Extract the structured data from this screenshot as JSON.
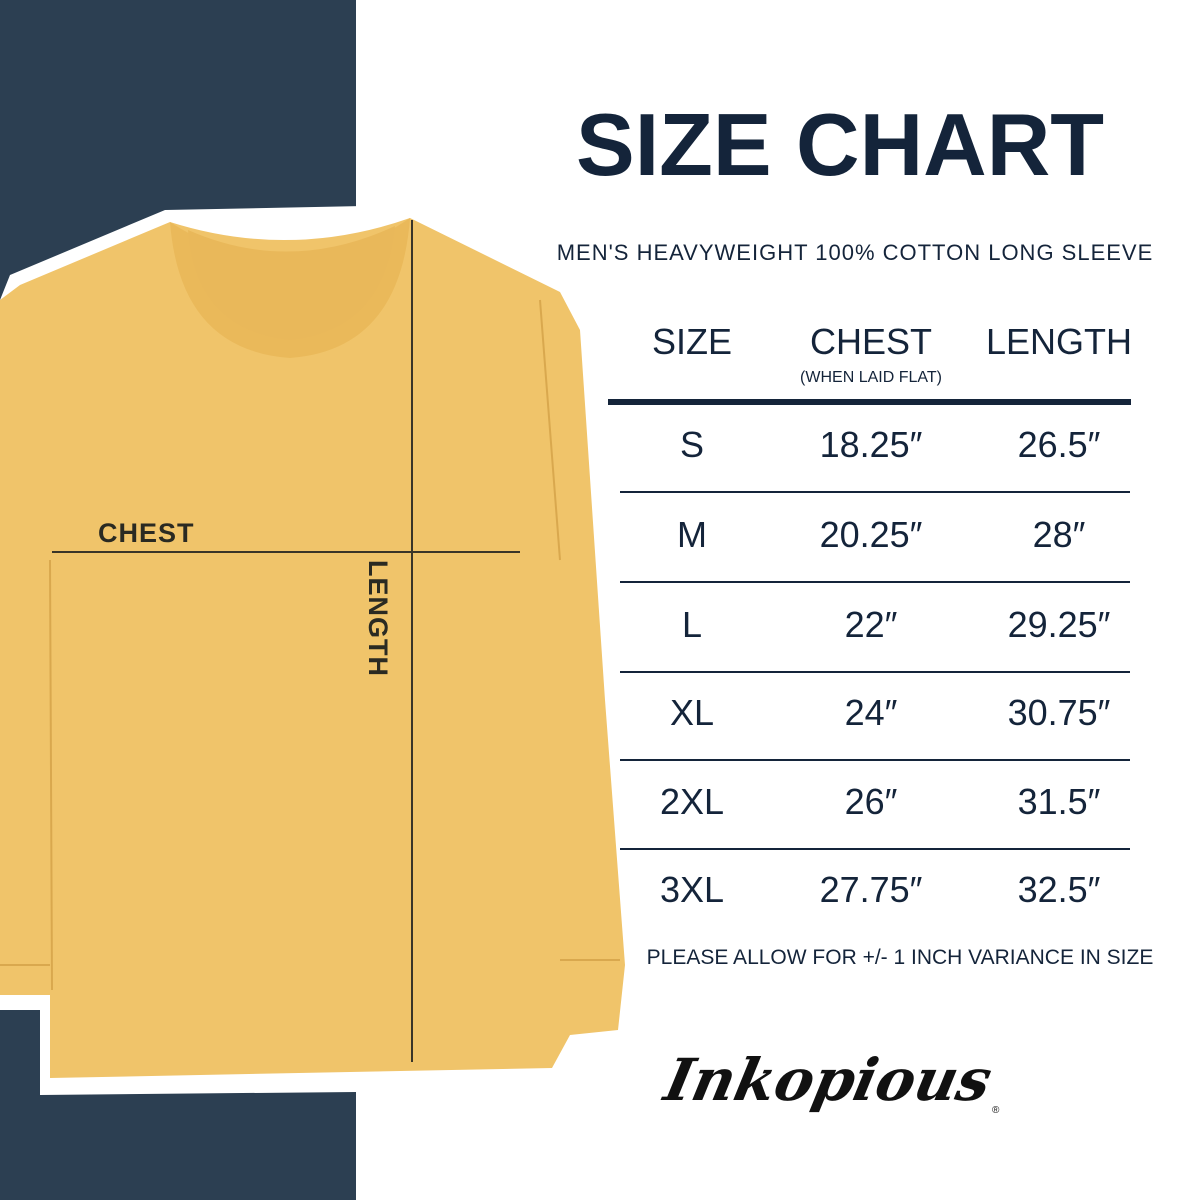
{
  "title": "SIZE CHART",
  "subtitle": "MEN'S HEAVYWEIGHT 100% COTTON LONG SLEEVE",
  "table": {
    "headers": {
      "size": "SIZE",
      "chest": "CHEST",
      "chest_note": "(WHEN LAID FLAT)",
      "length": "LENGTH"
    },
    "rows": [
      {
        "size": "S",
        "chest": "18.25″",
        "length": "26.5″"
      },
      {
        "size": "M",
        "chest": "20.25″",
        "length": "28″"
      },
      {
        "size": "L",
        "chest": "22″",
        "length": "29.25″"
      },
      {
        "size": "XL",
        "chest": "24″",
        "length": "30.75″"
      },
      {
        "size": "2XL",
        "chest": "26″",
        "length": "31.5″"
      },
      {
        "size": "3XL",
        "chest": "27.75″",
        "length": "32.5″"
      }
    ]
  },
  "note": "PLEASE ALLOW FOR +/- 1 INCH VARIANCE IN SIZE",
  "shirt_labels": {
    "chest": "CHEST",
    "length": "LENGTH"
  },
  "brand": "Inkopious",
  "colors": {
    "navy_panel": "#2c3f52",
    "text": "#14243a",
    "shirt": "#f0c46a",
    "logo": "#111111"
  }
}
